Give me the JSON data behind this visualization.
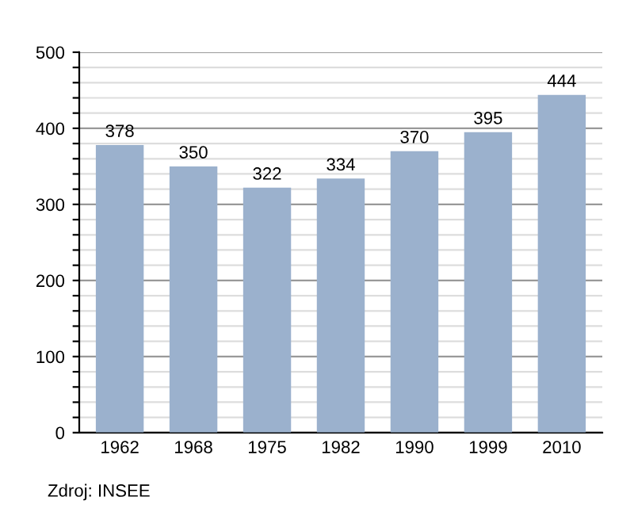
{
  "chart_data": {
    "type": "bar",
    "categories": [
      "1962",
      "1968",
      "1975",
      "1982",
      "1990",
      "1999",
      "2010"
    ],
    "values": [
      378,
      350,
      322,
      334,
      370,
      395,
      444
    ],
    "color": "#9bb1cd",
    "data_labels": true,
    "ylim": [
      0,
      500
    ],
    "yticks": [
      0,
      {
        "value": 20,
        "label": null
      },
      {
        "value": 40,
        "label": null
      },
      {
        "value": 60,
        "label": null
      },
      {
        "value": 80,
        "label": null
      },
      100,
      {
        "value": 120,
        "label": null
      },
      {
        "value": 140,
        "label": null
      },
      {
        "value": 160,
        "label": null
      },
      {
        "value": 180,
        "label": null
      },
      200,
      {
        "value": 220,
        "label": null
      },
      {
        "value": 240,
        "label": null
      },
      {
        "value": 260,
        "label": null
      },
      {
        "value": 280,
        "label": null
      },
      300,
      {
        "value": 320,
        "label": null
      },
      {
        "value": 340,
        "label": null
      },
      {
        "value": 360,
        "label": null
      },
      {
        "value": 380,
        "label": null
      },
      400,
      {
        "value": 420,
        "label": null
      },
      {
        "value": 440,
        "label": null
      },
      {
        "value": 460,
        "label": null
      },
      {
        "value": 480,
        "label": null
      },
      500
    ],
    "grid": "y",
    "annotations": [
      "Zdroj: INSEE"
    ]
  }
}
